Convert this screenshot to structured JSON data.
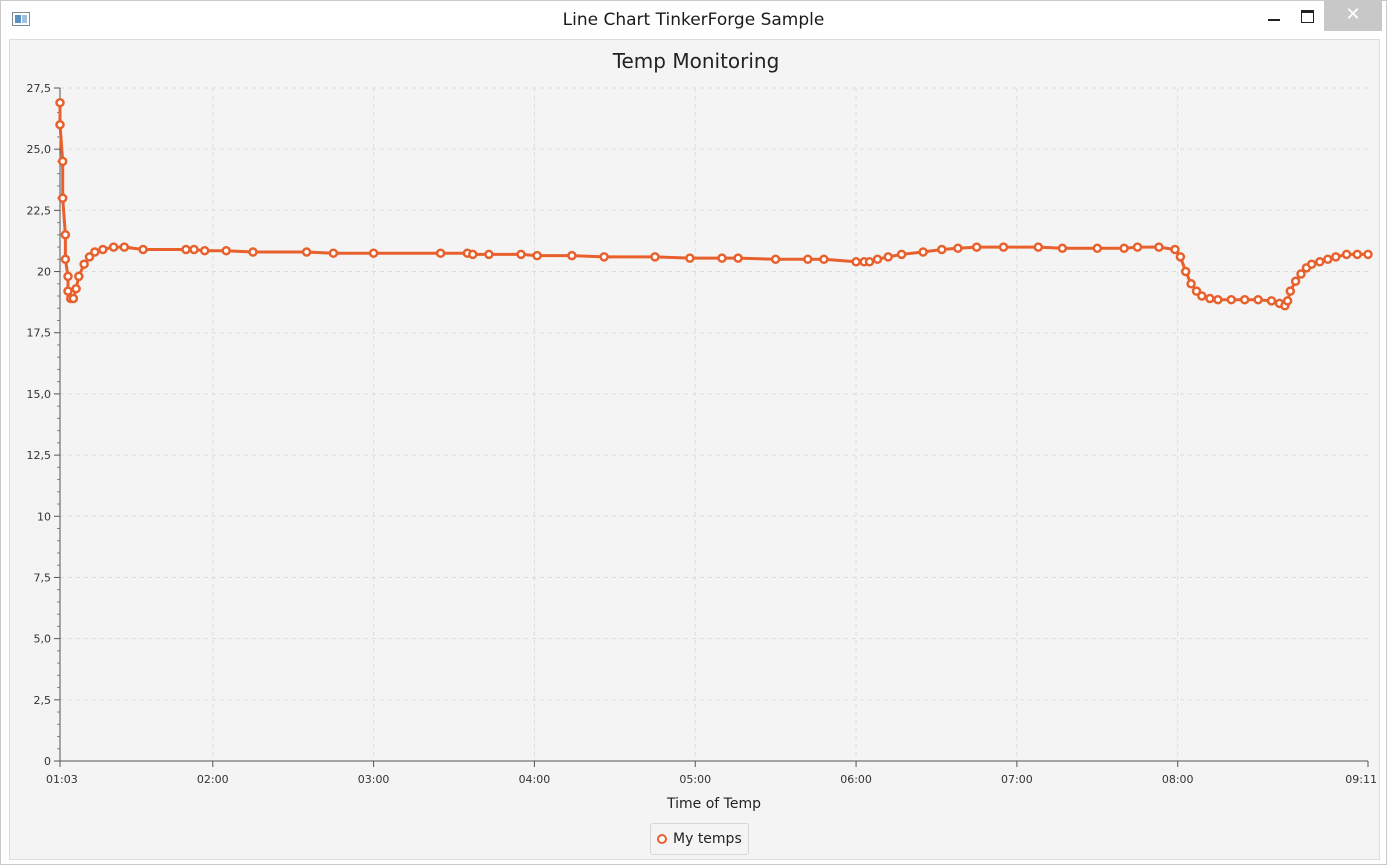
{
  "window": {
    "title": "Line Chart TinkerForge Sample",
    "icon": "app-window-icon",
    "minimize_icon": "minimize-icon",
    "maximize_icon": "maximize-icon",
    "close_icon": "close-icon",
    "close_glyph": "✕"
  },
  "colors": {
    "series": "#e8602c",
    "background": "#f4f4f4",
    "grid": "#dddddd"
  },
  "chart_data": {
    "type": "line",
    "title": "Temp Monitoring",
    "xlabel": "Time of Temp",
    "ylabel": "",
    "xlim": [
      "01:03",
      "09:11"
    ],
    "ylim": [
      0,
      27.5
    ],
    "y_ticks": [
      "0",
      "2,5",
      "5,0",
      "7,5",
      "10",
      "12,5",
      "15,0",
      "17,5",
      "20",
      "22,5",
      "25,0",
      "27,5"
    ],
    "x_ticks": [
      "01:03",
      "02:00",
      "03:00",
      "04:00",
      "05:00",
      "06:00",
      "07:00",
      "08:00",
      "09:11"
    ],
    "grid": true,
    "legend_position": "bottom-center",
    "series": [
      {
        "name": "My temps",
        "marker": "hollow-circle",
        "points": [
          [
            "01:03",
            26.9
          ],
          [
            "01:03",
            26.0
          ],
          [
            "01:04",
            24.5
          ],
          [
            "01:04",
            23.0
          ],
          [
            "01:05",
            21.5
          ],
          [
            "01:05",
            20.5
          ],
          [
            "01:06",
            19.8
          ],
          [
            "01:06",
            19.2
          ],
          [
            "01:07",
            18.9
          ],
          [
            "01:08",
            18.9
          ],
          [
            "01:09",
            19.3
          ],
          [
            "01:10",
            19.8
          ],
          [
            "01:12",
            20.3
          ],
          [
            "01:14",
            20.6
          ],
          [
            "01:16",
            20.8
          ],
          [
            "01:19",
            20.9
          ],
          [
            "01:23",
            21.0
          ],
          [
            "01:27",
            21.0
          ],
          [
            "01:34",
            20.9
          ],
          [
            "01:50",
            20.9
          ],
          [
            "01:53",
            20.9
          ],
          [
            "01:57",
            20.85
          ],
          [
            "02:05",
            20.85
          ],
          [
            "02:15",
            20.8
          ],
          [
            "02:35",
            20.8
          ],
          [
            "02:45",
            20.75
          ],
          [
            "03:00",
            20.75
          ],
          [
            "03:25",
            20.75
          ],
          [
            "03:35",
            20.75
          ],
          [
            "03:37",
            20.7
          ],
          [
            "03:43",
            20.7
          ],
          [
            "03:55",
            20.7
          ],
          [
            "04:01",
            20.65
          ],
          [
            "04:14",
            20.65
          ],
          [
            "04:26",
            20.6
          ],
          [
            "04:45",
            20.6
          ],
          [
            "04:58",
            20.55
          ],
          [
            "05:10",
            20.55
          ],
          [
            "05:16",
            20.55
          ],
          [
            "05:30",
            20.5
          ],
          [
            "05:42",
            20.5
          ],
          [
            "05:48",
            20.5
          ],
          [
            "06:00",
            20.4
          ],
          [
            "06:03",
            20.4
          ],
          [
            "06:05",
            20.4
          ],
          [
            "06:08",
            20.5
          ],
          [
            "06:12",
            20.6
          ],
          [
            "06:17",
            20.7
          ],
          [
            "06:25",
            20.8
          ],
          [
            "06:32",
            20.9
          ],
          [
            "06:38",
            20.95
          ],
          [
            "06:45",
            21.0
          ],
          [
            "06:55",
            21.0
          ],
          [
            "07:08",
            21.0
          ],
          [
            "07:17",
            20.95
          ],
          [
            "07:30",
            20.95
          ],
          [
            "07:40",
            20.95
          ],
          [
            "07:45",
            21.0
          ],
          [
            "07:53",
            21.0
          ],
          [
            "07:59",
            20.9
          ],
          [
            "08:01",
            20.6
          ],
          [
            "08:03",
            20.0
          ],
          [
            "08:05",
            19.5
          ],
          [
            "08:07",
            19.2
          ],
          [
            "08:09",
            19.0
          ],
          [
            "08:12",
            18.9
          ],
          [
            "08:15",
            18.85
          ],
          [
            "08:20",
            18.85
          ],
          [
            "08:25",
            18.85
          ],
          [
            "08:30",
            18.85
          ],
          [
            "08:35",
            18.8
          ],
          [
            "08:38",
            18.7
          ],
          [
            "08:40",
            18.6
          ],
          [
            "08:41",
            18.8
          ],
          [
            "08:42",
            19.2
          ],
          [
            "08:44",
            19.6
          ],
          [
            "08:46",
            19.9
          ],
          [
            "08:48",
            20.15
          ],
          [
            "08:50",
            20.3
          ],
          [
            "08:53",
            20.4
          ],
          [
            "08:56",
            20.5
          ],
          [
            "08:59",
            20.6
          ],
          [
            "09:03",
            20.7
          ],
          [
            "09:07",
            20.7
          ],
          [
            "09:11",
            20.7
          ]
        ]
      }
    ]
  }
}
